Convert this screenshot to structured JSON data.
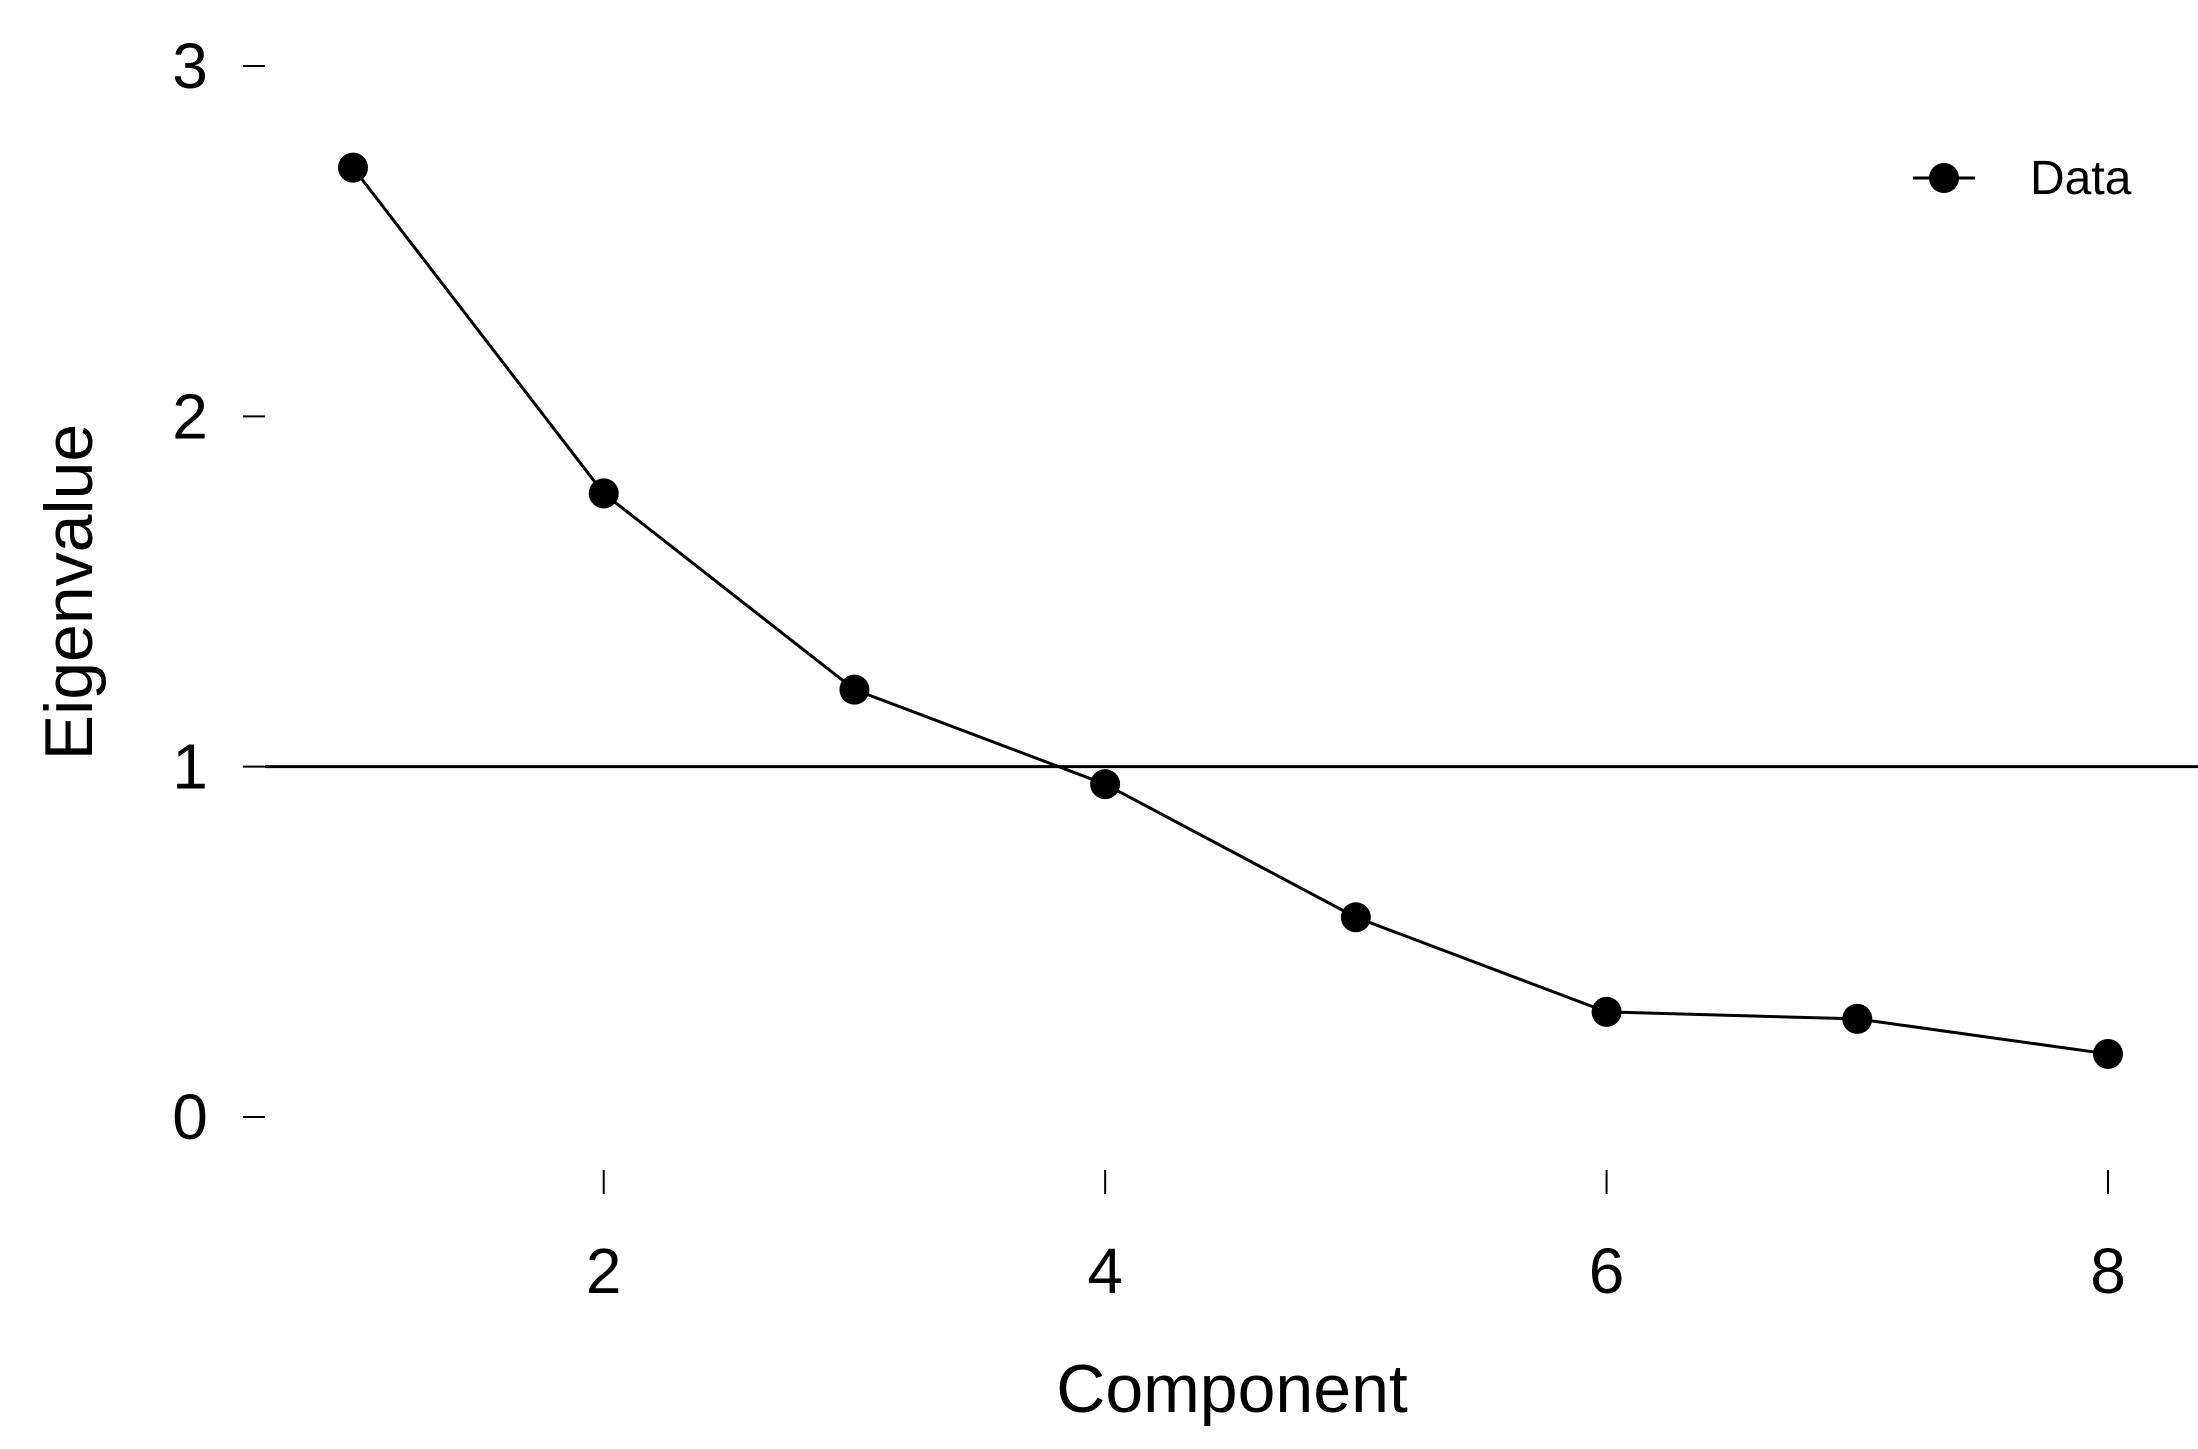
{
  "chart_data": {
    "type": "line",
    "title": "",
    "xlabel": "Component",
    "ylabel": "Eigenvalue",
    "x": [
      1,
      2,
      3,
      4,
      5,
      6,
      7,
      8
    ],
    "series": [
      {
        "name": "Data",
        "values": [
          2.71,
          1.78,
          1.22,
          0.95,
          0.57,
          0.3,
          0.28,
          0.18
        ]
      }
    ],
    "xlim": [
      1,
      8
    ],
    "ylim": [
      0,
      3
    ],
    "xticks": [
      2,
      4,
      6,
      8
    ],
    "yticks": [
      0,
      1,
      2,
      3
    ],
    "reference_line": {
      "y": 1
    },
    "grid": false,
    "legend": {
      "position": "top-right"
    },
    "colors": {
      "line": "#000000",
      "marker": "#000000"
    }
  }
}
